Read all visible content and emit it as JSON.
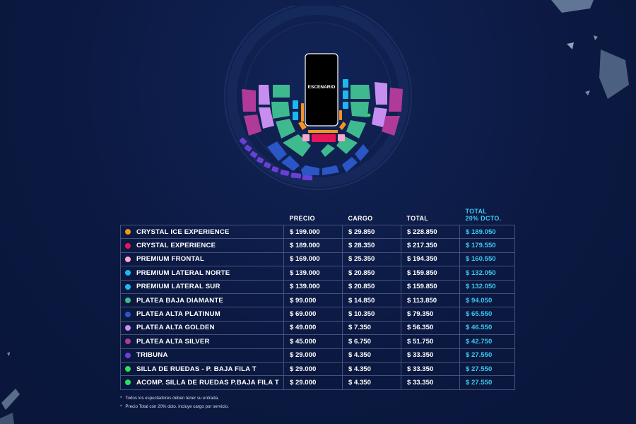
{
  "stage_label": "ESCENARIO",
  "columns": {
    "precio": "PRECIO",
    "cargo": "CARGO",
    "total": "TOTAL",
    "discount_line1": "TOTAL",
    "discount_line2": "20% DCTO."
  },
  "rows": [
    {
      "name": "CRYSTAL ICE EXPERIENCE",
      "color": "#f7941d",
      "precio": "$ 199.000",
      "cargo": "$ 29.850",
      "total": "$ 228.850",
      "discount": "$ 189.050"
    },
    {
      "name": "CRYSTAL EXPERIENCE",
      "color": "#e8145a",
      "precio": "$ 189.000",
      "cargo": "$ 28.350",
      "total": "$ 217.350",
      "discount": "$ 179.550"
    },
    {
      "name": "PREMIUM FRONTAL",
      "color": "#f9a8cf",
      "precio": "$ 169.000",
      "cargo": "$ 25.350",
      "total": "$ 194.350",
      "discount": "$ 160.550"
    },
    {
      "name": "PREMIUM LATERAL NORTE",
      "color": "#1eb8ef",
      "precio": "$ 139.000",
      "cargo": "$ 20.850",
      "total": "$ 159.850",
      "discount": "$ 132.050"
    },
    {
      "name": "PREMIUM LATERAL SUR",
      "color": "#1eb8ef",
      "precio": "$ 139.000",
      "cargo": "$ 20.850",
      "total": "$ 159.850",
      "discount": "$ 132.050"
    },
    {
      "name": "PLATEA BAJA DIAMANTE",
      "color": "#3fb98e",
      "precio": "$ 99.000",
      "cargo": "$ 14.850",
      "total": "$ 113.850",
      "discount": "$ 94.050"
    },
    {
      "name": "PLATEA ALTA PLATINUM",
      "color": "#2a56c6",
      "precio": "$ 69.000",
      "cargo": "$ 10.350",
      "total": "$ 79.350",
      "discount": "$ 65.550"
    },
    {
      "name": "PLATEA ALTA GOLDEN",
      "color": "#c78ef0",
      "precio": "$ 49.000",
      "cargo": "$ 7.350",
      "total": "$ 56.350",
      "discount": "$ 46.550"
    },
    {
      "name": "PLATEA ALTA SILVER",
      "color": "#b03a9a",
      "precio": "$ 45.000",
      "cargo": "$ 6.750",
      "total": "$ 51.750",
      "discount": "$ 42.750"
    },
    {
      "name": "TRIBUNA",
      "color": "#6a3fd8",
      "precio": "$ 29.000",
      "cargo": "$ 4.350",
      "total": "$ 33.350",
      "discount": "$ 27.550"
    },
    {
      "name": "SILLA DE RUEDAS - P. BAJA FILA T",
      "color": "#2de05a",
      "precio": "$ 29.000",
      "cargo": "$ 4.350",
      "total": "$ 33.350",
      "discount": "$ 27.550"
    },
    {
      "name": "ACOMP. SILLA DE RUEDAS P.BAJA FILA T",
      "color": "#2de05a",
      "precio": "$ 29.000",
      "cargo": "$ 4.350",
      "total": "$ 33.350",
      "discount": "$ 27.550"
    }
  ],
  "notes": [
    "Todos los espectadores deben tener su entrada.",
    "Precio Total con 20% dcto. incluye cargo por servicio."
  ],
  "note_marker": "*",
  "zone_colors": {
    "crystal_ice": "#f7941d",
    "crystal": "#e8145a",
    "premium_frontal": "#f9a8cf",
    "premium_lateral": "#1eb8ef",
    "platea_baja": "#3fb98e",
    "platinum": "#2a56c6",
    "golden": "#c78ef0",
    "silver": "#b03a9a",
    "tribuna": "#6a3fd8",
    "wheelchair": "#2de05a"
  }
}
